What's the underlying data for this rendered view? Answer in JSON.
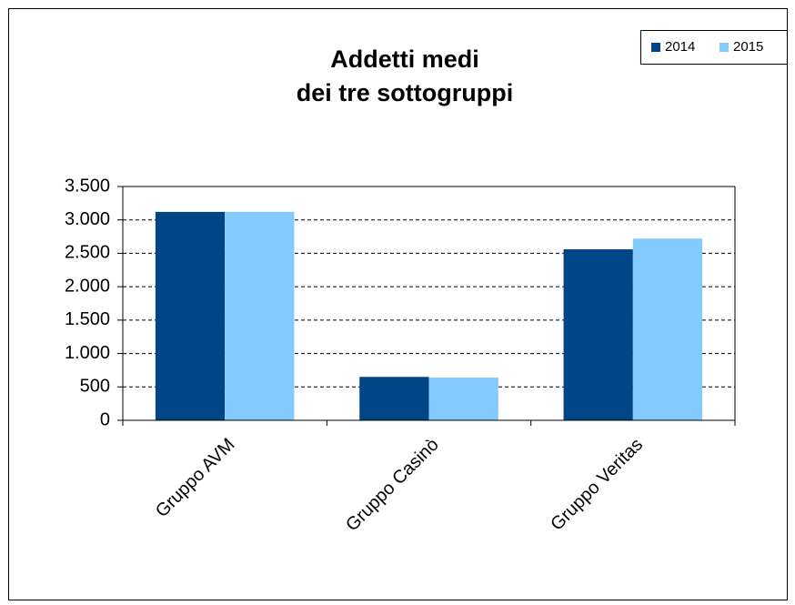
{
  "chart_data": {
    "type": "bar",
    "title": [
      "Addetti medi",
      "dei tre sottogruppi"
    ],
    "categories": [
      "Gruppo AVM",
      "Gruppo Casinò",
      "Gruppo Veritas"
    ],
    "series": [
      {
        "name": "2014",
        "color": "#004586",
        "values": [
          3120,
          650,
          2560
        ]
      },
      {
        "name": "2015",
        "color": "#83caff",
        "values": [
          3120,
          640,
          2720
        ]
      }
    ],
    "ylim": [
      0,
      3500
    ],
    "yticks": [
      0,
      500,
      {
        "value": 1000,
        "label": "1.000"
      },
      {
        "value": 1500,
        "label": "1.500"
      },
      {
        "value": 2000,
        "label": "2.000"
      },
      {
        "value": 2500,
        "label": "2.500"
      },
      {
        "value": 3000,
        "label": "3.000"
      },
      {
        "value": 3500,
        "label": "3.500"
      }
    ],
    "grid": true,
    "legend": "top-right"
  }
}
